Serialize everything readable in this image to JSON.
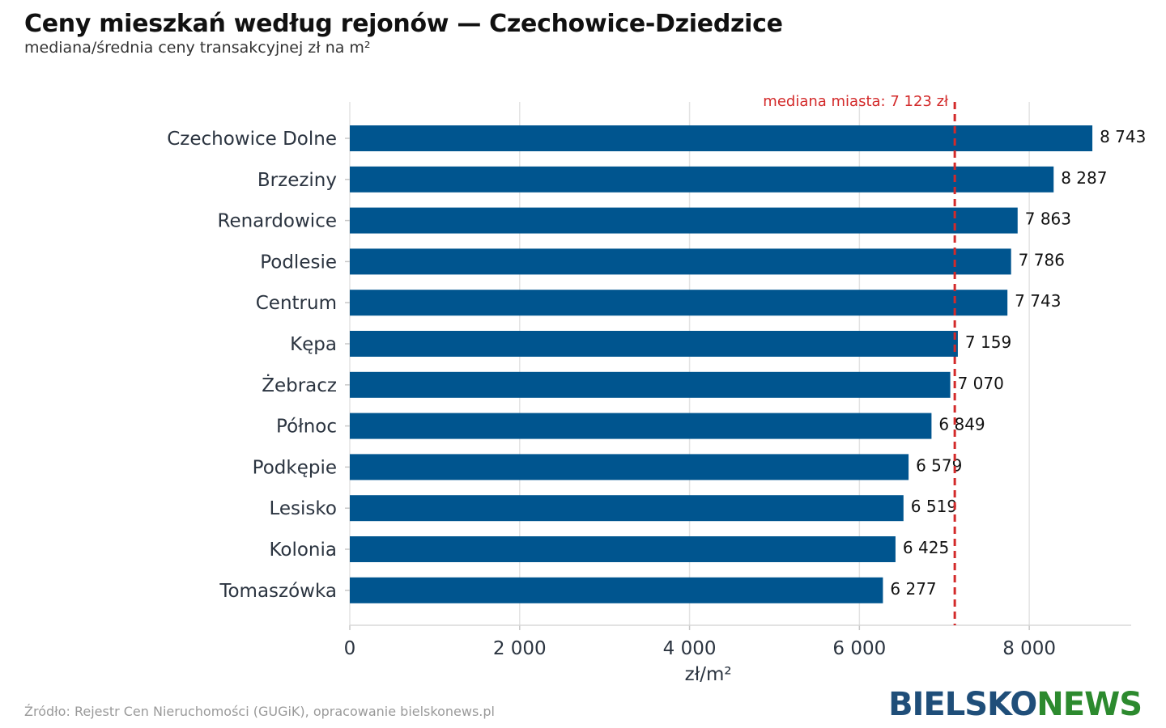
{
  "title": "Ceny mieszkań według rejonów — Czechowice-Dziedzice",
  "subtitle": "mediana/średnia ceny transakcyjnej zł na m²",
  "source": "Źródło: Rejestr Cen Nieruchomości (GUGiK), opracowanie bielskonews.pl",
  "logo": {
    "part1": "BIELSKO",
    "part2": "NEWS"
  },
  "colors": {
    "bar": "#00558f",
    "reference": "#d32a2a",
    "grid": "#e3e3e3"
  },
  "chart_data": {
    "type": "bar",
    "orientation": "horizontal",
    "categories": [
      "Czechowice Dolne",
      "Brzeziny",
      "Renardowice",
      "Podlesie",
      "Centrum",
      "Kępa",
      "Żebracz",
      "Północ",
      "Podkępie",
      "Lesisko",
      "Kolonia",
      "Tomaszówka"
    ],
    "values": [
      8743,
      8287,
      7863,
      7786,
      7743,
      7159,
      7070,
      6849,
      6579,
      6519,
      6425,
      6277
    ],
    "value_labels": [
      "8 743",
      "8 287",
      "7 863",
      "7 786",
      "7 743",
      "7 159",
      "7 070",
      "6 849",
      "6 579",
      "6 519",
      "6 425",
      "6 277"
    ],
    "xlabel": "zł/m²",
    "xlim": [
      0,
      9200
    ],
    "xticks": [
      0,
      2000,
      4000,
      6000,
      8000
    ],
    "xtick_labels": [
      "0",
      "2 000",
      "4 000",
      "6 000",
      "8 000"
    ],
    "grid": true,
    "reference_line": {
      "value": 7123,
      "label": "mediana miasta: 7 123 zł"
    }
  }
}
